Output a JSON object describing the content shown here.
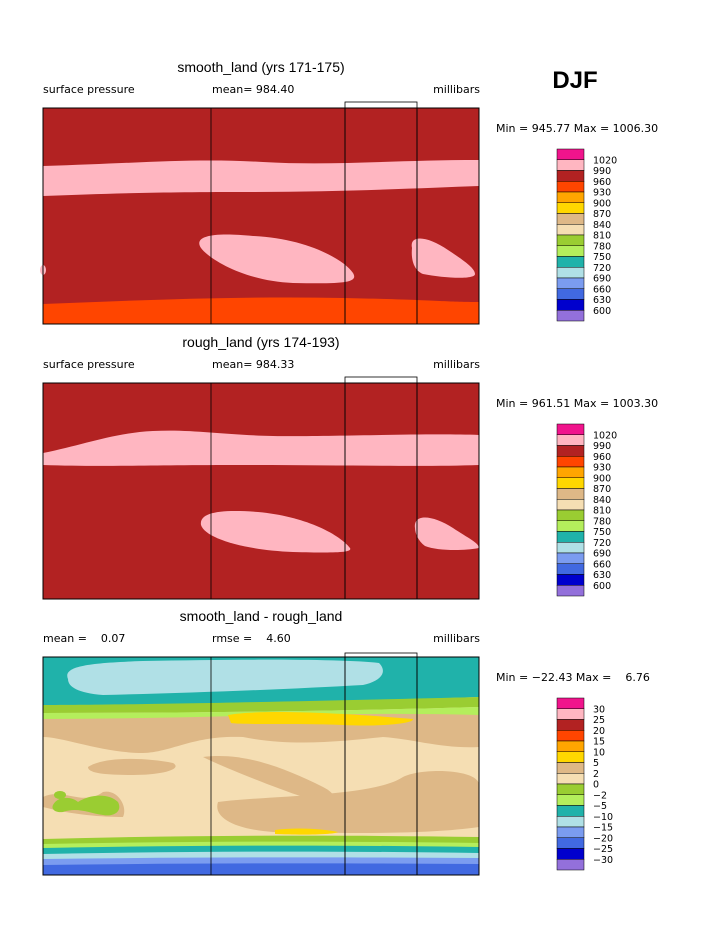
{
  "header": {
    "season": "DJF"
  },
  "palette": [
    "#f0148c",
    "#ffb6c1",
    "#b22222",
    "#ff4500",
    "#ffa500",
    "#ffd700",
    "#deb887",
    "#f5deb3",
    "#9acd32",
    "#b4ee5c",
    "#20b2aa",
    "#b0e0e6",
    "#7b9cf0",
    "#4169e1",
    "#0000cd",
    "#9370db"
  ],
  "panels": [
    {
      "title": "smooth_land (yrs 171-175)",
      "left": "surface pressure",
      "center": "mean= 984.40",
      "right": "millibars",
      "range": "Min = 945.77 Max = 1006.30",
      "colorbar": [
        "1020",
        "990",
        "960",
        "930",
        "900",
        "870",
        "840",
        "810",
        "780",
        "750",
        "720",
        "690",
        "660",
        "630",
        "600"
      ]
    },
    {
      "title": "rough_land (yrs 174-193)",
      "left": "surface pressure",
      "center": "mean= 984.33",
      "right": "millibars",
      "range": "Min = 961.51 Max = 1003.30",
      "colorbar": [
        "1020",
        "990",
        "960",
        "930",
        "900",
        "870",
        "840",
        "810",
        "780",
        "750",
        "720",
        "690",
        "660",
        "630",
        "600"
      ]
    },
    {
      "title": "smooth_land - rough_land",
      "left": "mean =    0.07",
      "center": "rmse =    4.60",
      "right": "millibars",
      "range": "Min = −22.43 Max =    6.76",
      "colorbar": [
        "30",
        "25",
        "20",
        "15",
        "10",
        "5",
        "2",
        "0",
        "−2",
        "−5",
        "−10",
        "−15",
        "−20",
        "−25",
        "−30"
      ]
    }
  ]
}
